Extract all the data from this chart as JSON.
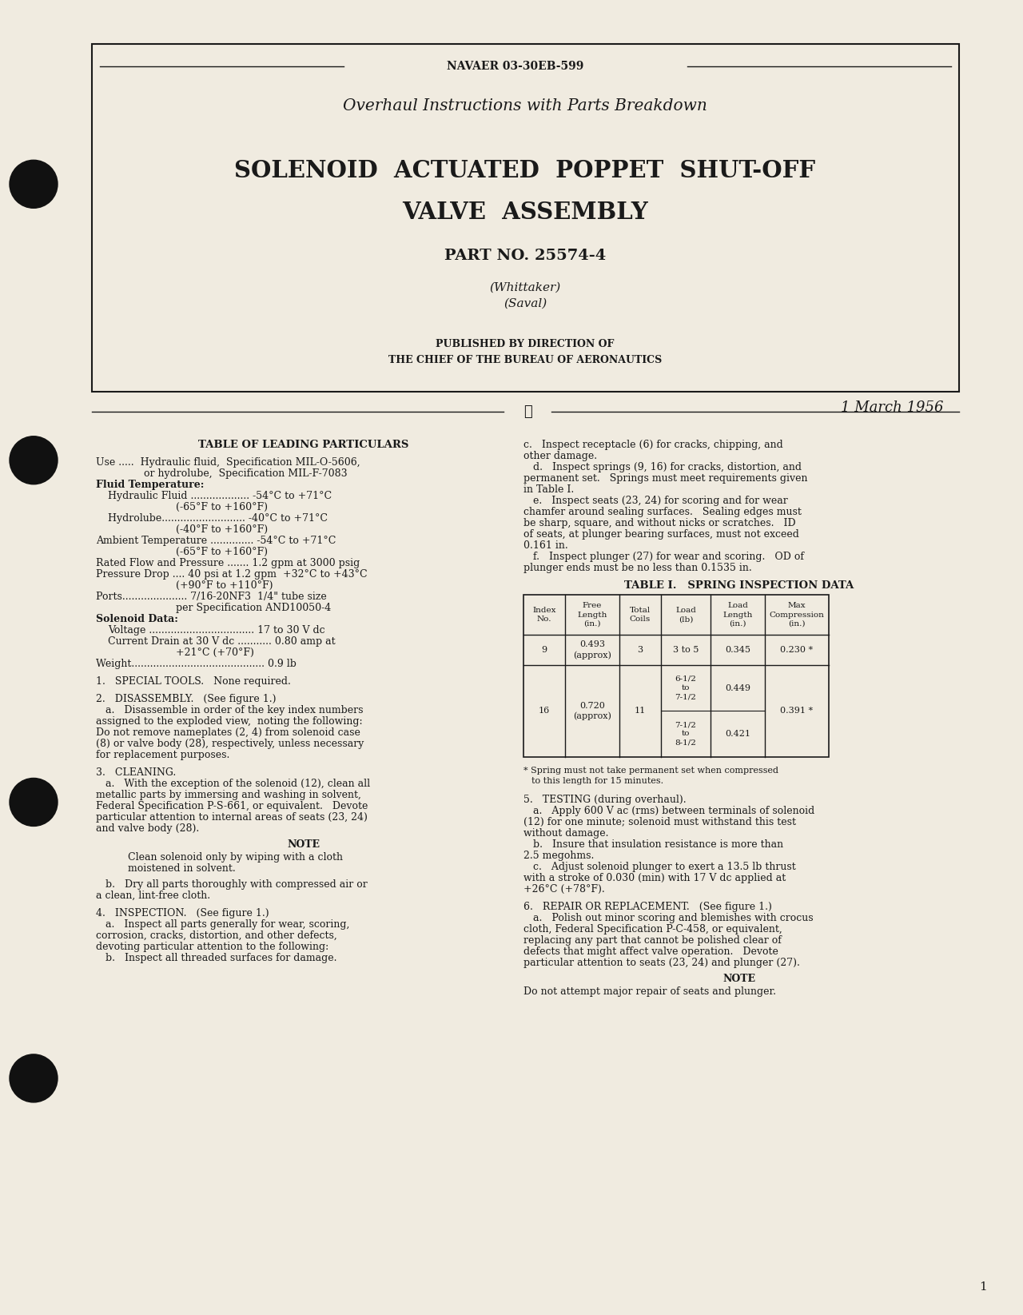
{
  "page_bg": "#f0ebe0",
  "text_color": "#1a1a1a",
  "border_color": "#1a1a1a",
  "header_doc_num": "NAVAER 03-30EB-599",
  "header_subtitle": "Overhaul Instructions with Parts Breakdown",
  "title_line1": "SOLENOID  ACTUATED  POPPET  SHUT-OFF",
  "title_line2": "VALVE  ASSEMBLY",
  "part_no": "PART NO. 25574-4",
  "maker1": "(Whittaker)",
  "maker2": "(Saval)",
  "pub_line1": "PUBLISHED BY DIRECTION OF",
  "pub_line2": "THE CHIEF OF THE BUREAU OF AERONAUTICS",
  "date": "1 March 1956",
  "page_number": "1",
  "hole_color": "#111111"
}
